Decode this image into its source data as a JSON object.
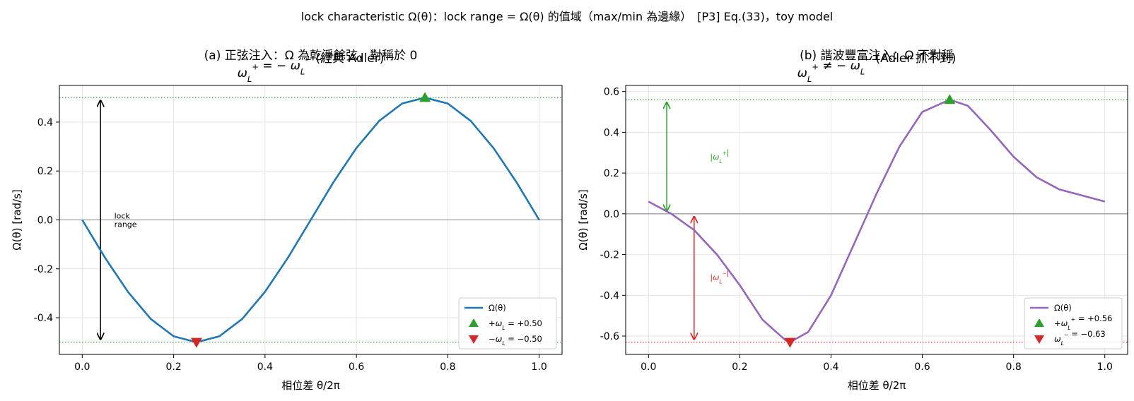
{
  "suptitle": "lock characteristic Ω(θ)：lock range = Ω(θ) 的值域（max/min 為邊緣）　[P3] Eq.(33)，toy model",
  "chart_data": [
    {
      "type": "line",
      "title_line1": "(a) 正弦注入：Ω 為乾淨餘弦，對稱於 0",
      "title_line2": "ωL⁺ = − ωL⁻  (經典 Adler)",
      "xlabel": "相位差 θ/2π",
      "ylabel": "Ω(θ)  [rad/s]",
      "xlim": [
        -0.05,
        1.05
      ],
      "ylim": [
        -0.55,
        0.55
      ],
      "xticks": [
        0.0,
        0.2,
        0.4,
        0.6,
        0.8,
        1.0
      ],
      "yticks": [
        -0.4,
        -0.2,
        0.0,
        0.2,
        0.4
      ],
      "grid": true,
      "line_color": "#1f77b4",
      "series": [
        {
          "name": "Ω(θ)",
          "x": [
            0.0,
            0.05,
            0.1,
            0.15,
            0.2,
            0.25,
            0.3,
            0.35,
            0.4,
            0.45,
            0.5,
            0.55,
            0.6,
            0.65,
            0.7,
            0.75,
            0.8,
            0.85,
            0.9,
            0.95,
            1.0
          ],
          "y": [
            0.0,
            -0.155,
            -0.294,
            -0.405,
            -0.476,
            -0.5,
            -0.476,
            -0.405,
            -0.294,
            -0.155,
            0.0,
            0.155,
            0.294,
            0.405,
            0.476,
            0.5,
            0.476,
            0.405,
            0.294,
            0.155,
            0.0
          ]
        }
      ],
      "max_marker": {
        "x": 0.75,
        "y": 0.5,
        "label": "+ωL = +0.50",
        "color": "#2ca02c"
      },
      "min_marker": {
        "x": 0.25,
        "y": -0.5,
        "label": "−ωL = −0.50",
        "color": "#d62728"
      },
      "hlines": [
        {
          "y": 0.5,
          "color": "#2ca02c"
        },
        {
          "y": -0.5,
          "color": "#2ca02c"
        }
      ],
      "arrows": [
        {
          "x": 0.04,
          "y1": -0.5,
          "y2": 0.5,
          "color": "#000000",
          "both": true
        }
      ],
      "annotations": [
        {
          "x": 0.07,
          "y": 0.0,
          "lines": [
            "lock",
            "range"
          ],
          "color": "#000000"
        }
      ],
      "legend_position": "lower-right"
    },
    {
      "type": "line",
      "title_line1": "(b) 諧波豐富注入：Ω 不對稱",
      "title_line2": "ωL⁺ ≠ − ωL⁻  (Adler 抓不到)",
      "xlabel": "相位差 θ/2π",
      "ylabel": "Ω(θ)  [rad/s]",
      "xlim": [
        -0.05,
        1.05
      ],
      "ylim": [
        -0.69,
        0.63
      ],
      "xticks": [
        0.0,
        0.2,
        0.4,
        0.6,
        0.8,
        1.0
      ],
      "yticks": [
        -0.6,
        -0.4,
        -0.2,
        0.0,
        0.2,
        0.4,
        0.6
      ],
      "grid": true,
      "line_color": "#9467bd",
      "series": [
        {
          "name": "Ω(θ)",
          "x": [
            0.0,
            0.05,
            0.1,
            0.15,
            0.2,
            0.25,
            0.3,
            0.31,
            0.35,
            0.4,
            0.45,
            0.5,
            0.55,
            0.6,
            0.66,
            0.7,
            0.75,
            0.8,
            0.85,
            0.9,
            0.95,
            1.0
          ],
          "y": [
            0.06,
            0.0,
            -0.08,
            -0.2,
            -0.35,
            -0.52,
            -0.62,
            -0.63,
            -0.58,
            -0.4,
            -0.15,
            0.1,
            0.33,
            0.5,
            0.56,
            0.53,
            0.41,
            0.28,
            0.18,
            0.12,
            0.09,
            0.06
          ]
        }
      ],
      "max_marker": {
        "x": 0.66,
        "y": 0.56,
        "label": "+ωL⁺ = +0.56",
        "color": "#2ca02c"
      },
      "min_marker": {
        "x": 0.31,
        "y": -0.63,
        "label": "ωL⁻ = −0.63",
        "color": "#d62728"
      },
      "hlines": [
        {
          "y": 0.56,
          "color": "#2ca02c"
        },
        {
          "y": -0.63,
          "color": "#d62728"
        }
      ],
      "arrows": [
        {
          "x": 0.04,
          "y1": 0.0,
          "y2": 0.56,
          "color": "#2ca02c",
          "both": true
        },
        {
          "x": 0.1,
          "y1": -0.63,
          "y2": 0.0,
          "color": "#d62728",
          "both": true
        }
      ],
      "annotations": [
        {
          "x": 0.135,
          "y": 0.28,
          "lines": [
            "|ωL⁺|"
          ],
          "color": "#2ca02c"
        },
        {
          "x": 0.135,
          "y": -0.31,
          "lines": [
            "|ωL⁻|"
          ],
          "color": "#d62728"
        }
      ],
      "legend_position": "lower-right"
    }
  ]
}
